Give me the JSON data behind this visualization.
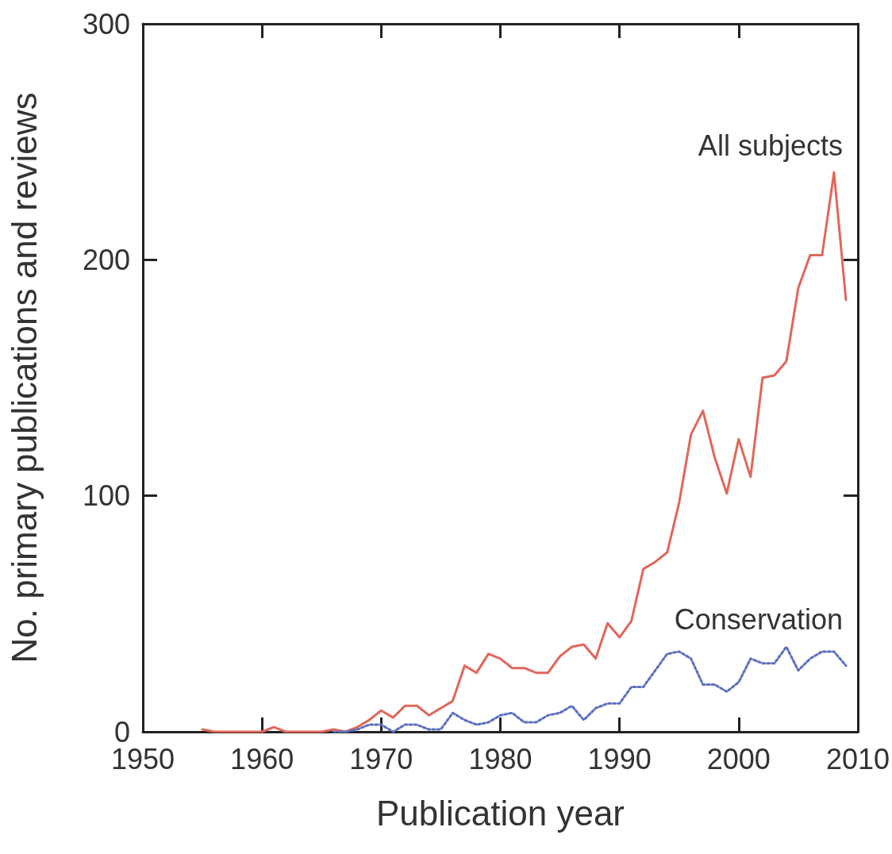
{
  "chart_data": {
    "type": "line",
    "xlabel": "Publication year",
    "ylabel": "No. primary publications and reviews",
    "xlim": [
      1950,
      2010
    ],
    "xticks": [
      1950,
      1960,
      1970,
      1980,
      1990,
      2000,
      2010
    ],
    "ylim": [
      0,
      300
    ],
    "yticks": [
      0,
      100,
      200,
      300
    ],
    "grid": false,
    "legend": false,
    "marker": "none",
    "series": [
      {
        "name": "All subjects",
        "color": "#e0675a",
        "line_style": "solid",
        "x": [
          1955,
          1956,
          1960,
          1961,
          1962,
          1963,
          1964,
          1965,
          1966,
          1967,
          1968,
          1969,
          1970,
          1971,
          1972,
          1973,
          1974,
          1975,
          1976,
          1977,
          1978,
          1979,
          1980,
          1981,
          1982,
          1983,
          1984,
          1985,
          1986,
          1987,
          1988,
          1989,
          1990,
          1991,
          1992,
          1993,
          1994,
          1995,
          1996,
          1997,
          1998,
          1999,
          2000,
          2001,
          2002,
          2003,
          2004,
          2005,
          2006,
          2007,
          2008,
          2009
        ],
        "values": [
          1,
          0,
          0,
          2,
          0,
          0,
          0,
          0,
          1,
          0,
          2,
          5,
          9,
          6,
          11,
          11,
          7,
          10,
          13,
          28,
          25,
          33,
          31,
          27,
          27,
          25,
          25,
          32,
          36,
          37,
          31,
          46,
          40,
          47,
          69,
          72,
          76,
          97,
          126,
          136,
          116,
          101,
          124,
          108,
          150,
          151,
          157,
          188,
          202,
          202,
          237,
          183
        ]
      },
      {
        "name": "Conservation",
        "color": "#5a6fc0",
        "line_style": "dotted",
        "x": [
          1966,
          1967,
          1968,
          1969,
          1970,
          1971,
          1972,
          1973,
          1974,
          1975,
          1976,
          1977,
          1978,
          1979,
          1980,
          1981,
          1982,
          1983,
          1984,
          1985,
          1986,
          1987,
          1988,
          1989,
          1990,
          1991,
          1992,
          1993,
          1994,
          1995,
          1996,
          1997,
          1998,
          1999,
          2000,
          2001,
          2002,
          2003,
          2004,
          2005,
          2006,
          2007,
          2008,
          2009
        ],
        "values": [
          0,
          0,
          1,
          3,
          3,
          0,
          3,
          3,
          1,
          1,
          8,
          5,
          3,
          4,
          7,
          8,
          4,
          4,
          7,
          8,
          11,
          5,
          10,
          12,
          12,
          19,
          19,
          26,
          33,
          34,
          31,
          20,
          20,
          17,
          21,
          31,
          29,
          29,
          36,
          26,
          31,
          34,
          34,
          28
        ]
      }
    ]
  }
}
